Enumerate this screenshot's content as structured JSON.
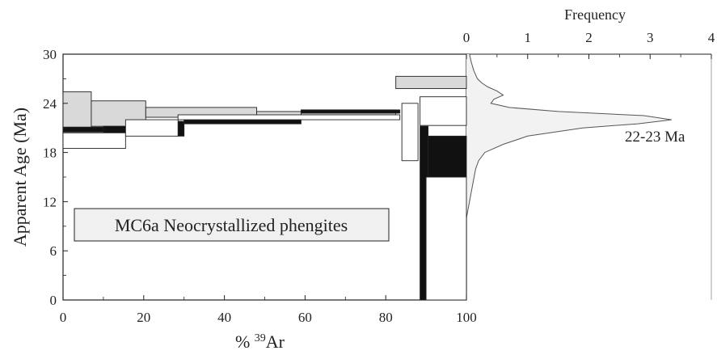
{
  "chart_data": {
    "type": "area",
    "title": "",
    "annotation": "MC6a  Neocrystallized  phengites",
    "peak_label": "22-23  Ma",
    "xlabel_left": "%",
    "xlabel_sup": "39",
    "xlabel_right": "Ar",
    "ylabel": "Apparent  Age  (Ma)",
    "freq_label": "Frequency",
    "xlim": [
      0,
      100
    ],
    "ylim": [
      0,
      30
    ],
    "xticks": [
      0,
      20,
      40,
      60,
      80,
      100
    ],
    "yticks": [
      0,
      6,
      12,
      18,
      24,
      30
    ],
    "freq_lim": [
      0,
      4
    ],
    "freq_ticks": [
      0,
      1,
      2,
      3,
      4
    ],
    "colors": {
      "gray_fill": "#d9d9d9",
      "black_fill": "#111111",
      "white_fill": "#ffffff",
      "line": "#222222",
      "freq_line": "#555555"
    },
    "spectra": [
      {
        "name": "gray",
        "steps": [
          {
            "x0": 0,
            "x1": 7,
            "lo": 20.8,
            "hi": 25.4
          },
          {
            "x0": 7,
            "x1": 20.5,
            "lo": 21.2,
            "hi": 24.3
          },
          {
            "x0": 20.5,
            "x1": 48,
            "lo": 22.3,
            "hi": 23.5
          },
          {
            "x0": 48,
            "x1": 59,
            "lo": 22.5,
            "hi": 23.0
          },
          {
            "x0": 59,
            "x1": 82.5,
            "lo": 22.6,
            "hi": 23.2
          },
          {
            "x0": 82.5,
            "x1": 100,
            "lo": 25.8,
            "hi": 27.3
          }
        ]
      },
      {
        "name": "black",
        "steps": [
          {
            "x0": 0,
            "x1": 10,
            "lo": 20.5,
            "hi": 21.1
          },
          {
            "x0": 10,
            "x1": 16,
            "lo": 20.4,
            "hi": 21.2
          },
          {
            "x0": 28.5,
            "x1": 30,
            "lo": 20.0,
            "hi": 21.8
          },
          {
            "x0": 30,
            "x1": 59,
            "lo": 21.5,
            "hi": 22.3
          },
          {
            "x0": 59,
            "x1": 83.5,
            "lo": 22.8,
            "hi": 23.2
          },
          {
            "x0": 88.5,
            "x1": 90.5,
            "lo": 0,
            "hi": 21.2
          },
          {
            "x0": 90.5,
            "x1": 100,
            "lo": 15.0,
            "hi": 20.0
          }
        ]
      },
      {
        "name": "white",
        "steps": [
          {
            "x0": 0,
            "x1": 15.5,
            "lo": 18.5,
            "hi": 20.4
          },
          {
            "x0": 15.5,
            "x1": 28.5,
            "lo": 20.0,
            "hi": 22.0
          },
          {
            "x0": 28.5,
            "x1": 83.5,
            "lo": 22.0,
            "hi": 22.6
          },
          {
            "x0": 84,
            "x1": 88,
            "lo": 17.0,
            "hi": 24.0
          },
          {
            "x0": 88.5,
            "x1": 100,
            "lo": 21.3,
            "hi": 24.8
          },
          {
            "x0": 90,
            "x1": 100,
            "lo": 0,
            "hi": 15.0
          }
        ]
      }
    ],
    "frequency_curve": {
      "age": [
        10,
        12,
        14,
        16,
        17,
        18,
        19,
        20,
        21,
        21.5,
        22,
        22.5,
        23,
        23.5,
        24,
        24.5,
        25,
        25.5,
        26,
        26.5,
        27,
        28,
        29,
        30
      ],
      "frequency": [
        0.0,
        0.05,
        0.1,
        0.15,
        0.2,
        0.3,
        0.6,
        1.0,
        1.9,
        2.8,
        3.35,
        2.9,
        1.5,
        0.7,
        0.4,
        0.45,
        0.6,
        0.5,
        0.35,
        0.25,
        0.18,
        0.12,
        0.08,
        0.05
      ]
    }
  }
}
